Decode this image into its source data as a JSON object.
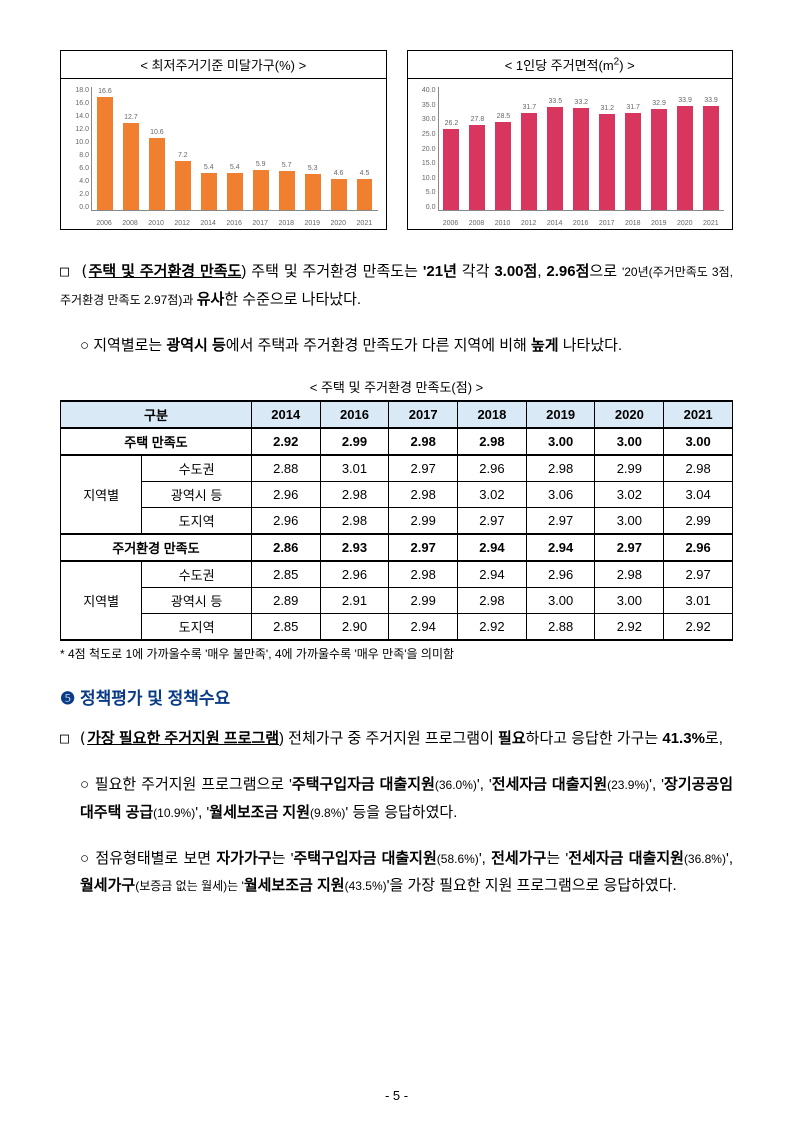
{
  "chart1": {
    "title": "< 최저주거기준 미달가구(%) >",
    "type": "bar",
    "categories": [
      "2006",
      "2008",
      "2010",
      "2012",
      "2014",
      "2016",
      "2017",
      "2018",
      "2019",
      "2020",
      "2021"
    ],
    "values": [
      16.6,
      12.7,
      10.6,
      7.2,
      5.4,
      5.4,
      5.9,
      5.7,
      5.3,
      4.6,
      4.5
    ],
    "ymax": 18.0,
    "ytick_step": 2.0,
    "bar_color": "#f08030",
    "grid_color": "#e0e0e0"
  },
  "chart2": {
    "title_prefix": "< 1인당 주거면적(m",
    "title_suffix": ") >",
    "type": "bar",
    "categories": [
      "2006",
      "2008",
      "2010",
      "2012",
      "2014",
      "2016",
      "2017",
      "2018",
      "2019",
      "2020",
      "2021"
    ],
    "values": [
      26.2,
      27.8,
      28.5,
      31.7,
      33.5,
      33.2,
      31.2,
      31.7,
      32.9,
      33.9,
      33.9
    ],
    "ymax": 40.0,
    "ytick_step": 5.0,
    "bar_color": "#d9365f",
    "grid_color": "#e0e0e0"
  },
  "p1": {
    "t1": "□ (",
    "t2": "주택 및 주거환경 만족도",
    "t3": ") 주택 및 주거환경 만족도는 ",
    "t4": "'21년",
    "t5": " 각각 ",
    "t6": "3.00점",
    "t7": ", ",
    "t8": "2.96점",
    "t9": "으로 ",
    "t10": "'20년(주거만족도 3점, 주거환경 만족도 2.97점)과 ",
    "t11": "유사",
    "t12": "한 수준으로 나타났다."
  },
  "p2": {
    "t1": "○ 지역별로는 ",
    "t2": "광역시 등",
    "t3": "에서 주택과 주거환경 만족도가 다른 지역에 비해 ",
    "t4": "높게",
    "t5": " 나타났다."
  },
  "table": {
    "caption": "< 주택 및 주거환경 만족도(점) >",
    "header": [
      "구분",
      "2014",
      "2016",
      "2017",
      "2018",
      "2019",
      "2020",
      "2021"
    ],
    "section1_label": "주택 만족도",
    "region_label": "지역별",
    "sub1": "수도권",
    "sub2": "광역시 등",
    "sub3": "도지역",
    "section2_label": "주거환경 만족도",
    "r_s1": [
      "2.92",
      "2.99",
      "2.98",
      "2.98",
      "3.00",
      "3.00",
      "3.00"
    ],
    "r_1a": [
      "2.88",
      "3.01",
      "2.97",
      "2.96",
      "2.98",
      "2.99",
      "2.98"
    ],
    "r_1b": [
      "2.96",
      "2.98",
      "2.98",
      "3.02",
      "3.06",
      "3.02",
      "3.04"
    ],
    "r_1c": [
      "2.96",
      "2.98",
      "2.99",
      "2.97",
      "2.97",
      "3.00",
      "2.99"
    ],
    "r_s2": [
      "2.86",
      "2.93",
      "2.97",
      "2.94",
      "2.94",
      "2.97",
      "2.96"
    ],
    "r_2a": [
      "2.85",
      "2.96",
      "2.98",
      "2.94",
      "2.96",
      "2.98",
      "2.97"
    ],
    "r_2b": [
      "2.89",
      "2.91",
      "2.99",
      "2.98",
      "3.00",
      "3.00",
      "3.01"
    ],
    "r_2c": [
      "2.85",
      "2.90",
      "2.94",
      "2.92",
      "2.88",
      "2.92",
      "2.92"
    ],
    "note": "* 4점 척도로 1에 가까울수록 '매우 불만족', 4에 가까울수록 '매우 만족'을 의미함"
  },
  "heading5": {
    "num": "❺",
    "text": " 정책평가 및 정책수요"
  },
  "p3": {
    "t1": "□ (",
    "t2": "가장 필요한 주거지원 프로그램",
    "t3": ") 전체가구 중 주거지원 프로그램이 ",
    "t4": "필요",
    "t5": "하다고 응답한 가구는 ",
    "t6": "41.3%",
    "t7": "로,"
  },
  "p4": {
    "t1": "○ 필요한 주거지원 프로그램으로 '",
    "t2": "주택구입자금 대출지원",
    "t3": "(36.0%)",
    "t4": "', '",
    "t5": "전세자금 대출지원",
    "t6": "(23.9%)",
    "t7": "', '",
    "t8": "장기공공임대주택 공급",
    "t9": "(10.9%)",
    "t10": "', '",
    "t11": "월세보조금 지원",
    "t12": "(9.8%)",
    "t13": "' 등을 응답하였다."
  },
  "p5": {
    "t1": "○ 점유형태별로 보면 ",
    "t2": "자가가구",
    "t3": "는 '",
    "t4": "주택구입자금 대출지원",
    "t5": "(58.6%)",
    "t6": "', ",
    "t7": "전세가구",
    "t8": "는 '",
    "t9": "전세자금 대출지원",
    "t10": "(36.8%)",
    "t11": "', ",
    "t12": "월세가구",
    "t13": "(보증금 없는 월세)는 '",
    "t14": "월세보조금 지원",
    "t15": "(43.5%)",
    "t16": "'을 가장 필요한 지원 프로그램으로 응답하였다."
  },
  "page": "- 5 -"
}
